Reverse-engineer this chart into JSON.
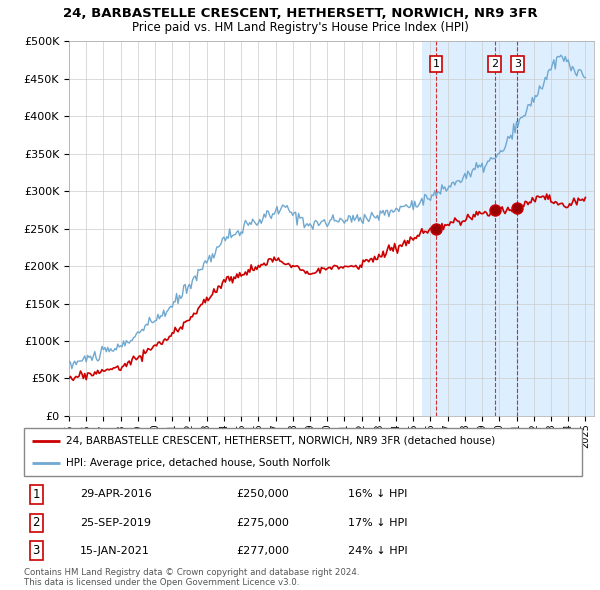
{
  "title1": "24, BARBASTELLE CRESCENT, HETHERSETT, NORWICH, NR9 3FR",
  "title2": "Price paid vs. HM Land Registry's House Price Index (HPI)",
  "ylabel_ticks": [
    "£0",
    "£50K",
    "£100K",
    "£150K",
    "£200K",
    "£250K",
    "£300K",
    "£350K",
    "£400K",
    "£450K",
    "£500K"
  ],
  "ytick_values": [
    0,
    50000,
    100000,
    150000,
    200000,
    250000,
    300000,
    350000,
    400000,
    450000,
    500000
  ],
  "ylim": [
    0,
    500000
  ],
  "xlim_start": 1995.25,
  "xlim_end": 2025.5,
  "sale_dates": [
    2016.33,
    2019.73,
    2021.04
  ],
  "sale_prices": [
    250000,
    275000,
    277000
  ],
  "sale_labels": [
    "1",
    "2",
    "3"
  ],
  "sale_label_dates": [
    "29-APR-2016",
    "25-SEP-2019",
    "15-JAN-2021"
  ],
  "sale_label_prices": [
    "£250,000",
    "£275,000",
    "£277,000"
  ],
  "sale_label_pcts": [
    "16% ↓ HPI",
    "17% ↓ HPI",
    "24% ↓ HPI"
  ],
  "red_color": "#cc0000",
  "blue_color": "#6fa8d0",
  "shade_color": "#ddeeff",
  "legend_line1": "24, BARBASTELLE CRESCENT, HETHERSETT, NORWICH, NR9 3FR (detached house)",
  "legend_line2": "HPI: Average price, detached house, South Norfolk",
  "footer1": "Contains HM Land Registry data © Crown copyright and database right 2024.",
  "footer2": "This data is licensed under the Open Government Licence v3.0.",
  "xtick_years": [
    1995,
    1996,
    1997,
    1998,
    1999,
    2000,
    2001,
    2002,
    2003,
    2004,
    2005,
    2006,
    2007,
    2008,
    2009,
    2010,
    2011,
    2012,
    2013,
    2014,
    2015,
    2016,
    2017,
    2018,
    2019,
    2020,
    2021,
    2022,
    2023,
    2024,
    2025
  ],
  "shade_start": 2015.5
}
